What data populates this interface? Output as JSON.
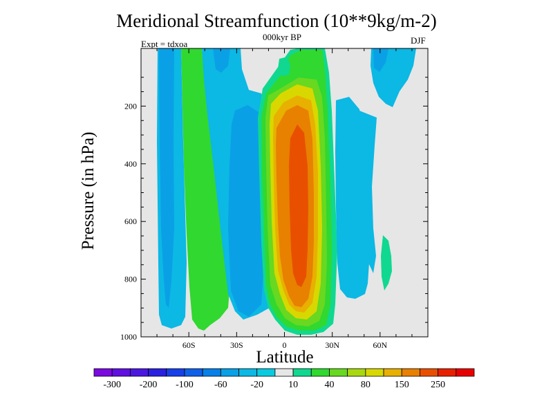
{
  "header": {
    "title": "Meridional Streamfunction (10**9kg/m-2)",
    "subtitle": "000kyr BP",
    "left_label": "Expt = tdxoa",
    "right_label": "DJF"
  },
  "chart_data": {
    "type": "heatmap",
    "title": "Meridional Streamfunction (10**9kg/m-2)",
    "subtitle": "000kyr BP",
    "annotations": [
      "Expt = tdxoa",
      "DJF"
    ],
    "xlabel": "Latitude",
    "ylabel": "Pressure (in hPa)",
    "xlim": [
      -90,
      90
    ],
    "ylim": [
      1000,
      0
    ],
    "x_ticks": [
      {
        "value": -60,
        "label": "60S"
      },
      {
        "value": -30,
        "label": "30S"
      },
      {
        "value": 0,
        "label": "0"
      },
      {
        "value": 30,
        "label": "30N"
      },
      {
        "value": 60,
        "label": "60N"
      }
    ],
    "y_ticks": [
      {
        "value": 200,
        "label": "200"
      },
      {
        "value": 400,
        "label": "400"
      },
      {
        "value": 600,
        "label": "600"
      },
      {
        "value": 800,
        "label": "800"
      },
      {
        "value": 1000,
        "label": "1000"
      }
    ],
    "colorbar": {
      "colors": [
        "#7a0ae0",
        "#6010e0",
        "#4a18e0",
        "#2a20e0",
        "#1840e8",
        "#1060e8",
        "#0880e8",
        "#0aa0e6",
        "#0cb8e4",
        "#0acae0",
        "#e6e6e6",
        "#10d890",
        "#30d830",
        "#68d820",
        "#a8d810",
        "#d8d800",
        "#e8b000",
        "#e88000",
        "#e85000",
        "#e82000",
        "#e80000"
      ],
      "labels": [
        {
          "value": "-300",
          "boundary": 1
        },
        {
          "value": "-200",
          "boundary": 3
        },
        {
          "value": "-100",
          "boundary": 5
        },
        {
          "value": "-60",
          "boundary": 7
        },
        {
          "value": "-20",
          "boundary": 9
        },
        {
          "value": "10",
          "boundary": 11
        },
        {
          "value": "40",
          "boundary": 13
        },
        {
          "value": "80",
          "boundary": 15
        },
        {
          "value": "150",
          "boundary": 17
        },
        {
          "value": "250",
          "boundary": 19
        }
      ]
    },
    "background_level": "-20 to 10",
    "features": [
      {
        "name": "southern-polar-cell",
        "lat_range": [
          -75,
          -68
        ],
        "pressure_range": [
          20,
          960
        ],
        "peak_level": "-60 to -20"
      },
      {
        "name": "southern-ferrel-cell",
        "lat_range": [
          -67,
          -55
        ],
        "pressure_range": [
          20,
          975
        ],
        "peak_level": "10 to 40"
      },
      {
        "name": "southern-hadley-cell",
        "lat_range": [
          -35,
          -20
        ],
        "pressure_range": [
          140,
          950
        ],
        "peak_level": "-60 to -20"
      },
      {
        "name": "winter-hadley-cell",
        "lat_range": [
          -5,
          25
        ],
        "pressure_range": [
          20,
          990
        ],
        "peak_level": "250 and above"
      },
      {
        "name": "northern-ferrel-cell",
        "lat_range": [
          35,
          50
        ],
        "pressure_range": [
          240,
          880
        ],
        "peak_level": "-60 to -20"
      },
      {
        "name": "northern-polar-cell",
        "lat_range": [
          55,
          75
        ],
        "pressure_range": [
          20,
          160
        ],
        "peak_level": "-60 to -20"
      },
      {
        "name": "northern-positive-patch",
        "lat_range": [
          62,
          65
        ],
        "pressure_range": [
          720,
          840
        ],
        "peak_level": "10 to 40"
      }
    ]
  }
}
